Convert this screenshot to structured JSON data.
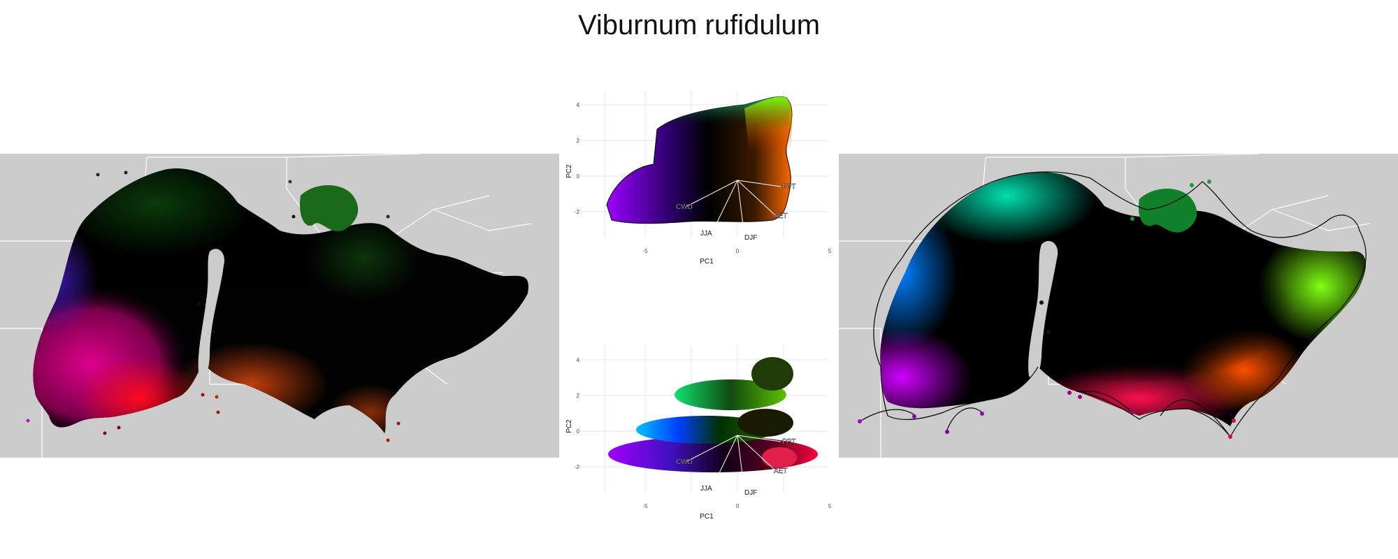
{
  "title": "Viburnum rufidulum",
  "colors": {
    "land": "#cccccc",
    "boundary": "#ffffff",
    "grid": "#e6e6e6",
    "ink": "#000000",
    "axis_text": "#4d4d4d"
  },
  "maps": [
    {
      "name": "left-map",
      "style": "terrain-shaded range colored by climate PCA"
    },
    {
      "name": "right-map",
      "style": "smooth range colored by climate PCA with hull outline"
    }
  ],
  "pca_plots": [
    {
      "name": "pca-top",
      "xlabel": "PC1",
      "ylabel": "PC2",
      "x_ticks": [
        "-5",
        "0",
        "5"
      ],
      "y_ticks": [
        "4",
        "2",
        "0",
        "-2"
      ],
      "loadings": [
        "CWD",
        "PPT",
        "AET",
        "JJA",
        "DJF"
      ]
    },
    {
      "name": "pca-bottom",
      "xlabel": "PC1",
      "ylabel": "PC2",
      "x_ticks": [
        "-5",
        "0",
        "5"
      ],
      "y_ticks": [
        "4",
        "2",
        "0",
        "-2"
      ],
      "loadings": [
        "CWD",
        "PPT",
        "AET",
        "JJA",
        "DJF"
      ]
    }
  ]
}
